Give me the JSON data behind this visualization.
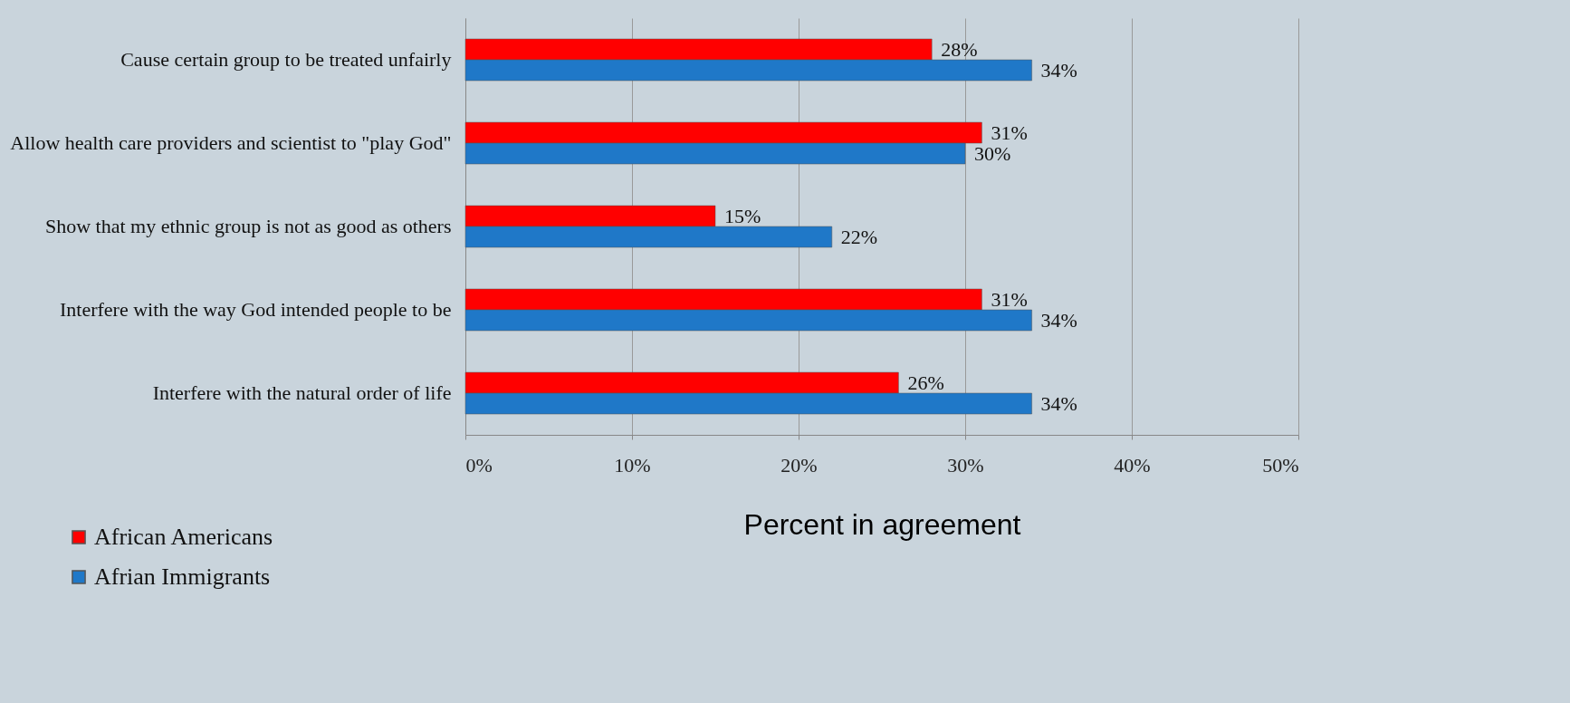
{
  "chart_data": {
    "type": "bar",
    "orientation": "horizontal",
    "xlabel": "Percent in agreement",
    "categories": [
      "Cause certain group to be treated unfairly",
      "Allow health care providers and scientist to \"play God\"",
      "Show that my ethnic group is not as good as others",
      "Interfere with the way God intended people to be",
      "Interfere with the natural order of life"
    ],
    "series": [
      {
        "name": "African Americans",
        "color": "#ff0000",
        "values": [
          28,
          31,
          15,
          31,
          26
        ],
        "value_labels": [
          "28%",
          "31%",
          "15%",
          "31%",
          "26%"
        ]
      },
      {
        "name": "Afrian Immigrants",
        "color": "#1f78c8",
        "values": [
          34,
          30,
          22,
          34,
          34
        ],
        "value_labels": [
          "34%",
          "30%",
          "22%",
          "34%",
          "34%"
        ]
      }
    ],
    "xlim": [
      0,
      50
    ],
    "xticks": [
      {
        "value": 0,
        "label": "0%"
      },
      {
        "value": 10,
        "label": "10%"
      },
      {
        "value": 20,
        "label": "20%"
      },
      {
        "value": 30,
        "label": "30%"
      },
      {
        "value": 40,
        "label": "40%"
      },
      {
        "value": 50,
        "label": "50%"
      }
    ],
    "grid": "x",
    "legend": "bottom left"
  }
}
